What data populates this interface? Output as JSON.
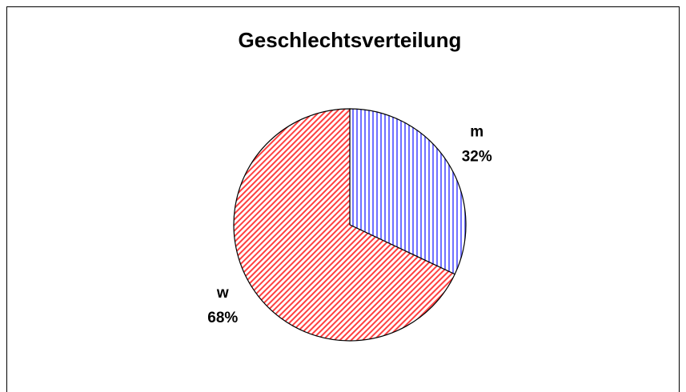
{
  "chart_data": {
    "type": "pie",
    "title": "Geschlechtsverteilung",
    "categories": [
      "m",
      "w"
    ],
    "values": [
      32,
      68
    ],
    "value_labels": [
      "32%",
      "68%"
    ],
    "colors": [
      "#7070ff",
      "#ff4040"
    ]
  }
}
